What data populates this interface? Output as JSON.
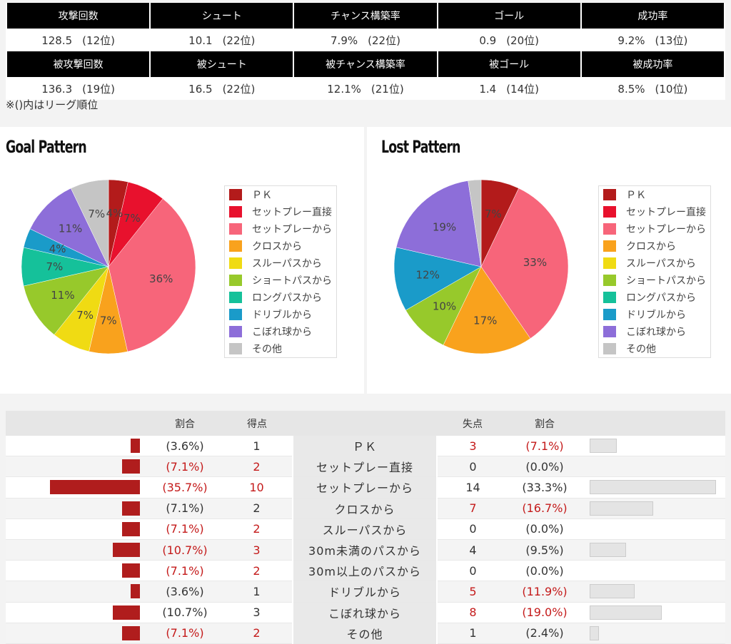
{
  "stats": {
    "row1": {
      "headers": [
        "攻撃回数",
        "シュート",
        "チャンス構築率",
        "ゴール",
        "成功率"
      ],
      "values": [
        [
          "128.5",
          "(12位)"
        ],
        [
          "10.1",
          "(22位)"
        ],
        [
          "7.9%",
          "(22位)"
        ],
        [
          "0.9",
          "(20位)"
        ],
        [
          "9.2%",
          "(13位)"
        ]
      ]
    },
    "row2": {
      "headers": [
        "被攻撃回数",
        "被シュート",
        "被チャンス構築率",
        "被ゴール",
        "被成功率"
      ],
      "values": [
        [
          "136.3",
          "(19位)"
        ],
        [
          "16.5",
          "(22位)"
        ],
        [
          "12.1%",
          "(21位)"
        ],
        [
          "1.4",
          "(14位)"
        ],
        [
          "8.5%",
          "(10位)"
        ]
      ]
    },
    "note": "※()内はリーグ順位"
  },
  "chart_data": [
    {
      "type": "pie",
      "title": "Goal Pattern",
      "categories": [
        "ＰＫ",
        "セットプレー直接",
        "セットプレーから",
        "クロスから",
        "スルーパスから",
        "ショートパスから",
        "ロングパスから",
        "ドリブルから",
        "こぼれ球から",
        "その他"
      ],
      "values": [
        3.6,
        7.1,
        35.7,
        7.1,
        7.1,
        10.7,
        7.1,
        3.6,
        10.7,
        7.1
      ],
      "labels": [
        "4%",
        "7%",
        "36%",
        "7%",
        "7%",
        "11%",
        "7%",
        "4%",
        "11%",
        "7%"
      ],
      "colors": [
        "#b31b1b",
        "#e8112d",
        "#f7657a",
        "#f9a21d",
        "#f0db13",
        "#97c92b",
        "#15c19a",
        "#1a9bc9",
        "#8d6ed9",
        "#c5c5c5"
      ]
    },
    {
      "type": "pie",
      "title": "Lost Pattern",
      "categories": [
        "ＰＫ",
        "セットプレー直接",
        "セットプレーから",
        "クロスから",
        "スルーパスから",
        "ショートパスから",
        "ロングパスから",
        "ドリブルから",
        "こぼれ球から",
        "その他"
      ],
      "values": [
        7.1,
        0,
        33.3,
        16.7,
        0,
        9.5,
        0,
        11.9,
        19.0,
        2.4
      ],
      "labels": [
        "7%",
        "",
        "33%",
        "17%",
        "",
        "10%",
        "",
        "12%",
        "19%",
        ""
      ],
      "colors": [
        "#b31b1b",
        "#e8112d",
        "#f7657a",
        "#f9a21d",
        "#f0db13",
        "#97c92b",
        "#15c19a",
        "#1a9bc9",
        "#8d6ed9",
        "#c5c5c5"
      ]
    }
  ],
  "compare": {
    "headers": [
      "",
      "割合",
      "得点",
      "",
      "失点",
      "割合",
      ""
    ],
    "rows": [
      {
        "label": "ＰＫ",
        "gf": "1",
        "gf_pct": "(3.6%)",
        "gf_v": 3.6,
        "gf_red": false,
        "ga": "3",
        "ga_pct": "(7.1%)",
        "ga_v": 7.1,
        "ga_red": true
      },
      {
        "label": "セットプレー直接",
        "gf": "2",
        "gf_pct": "(7.1%)",
        "gf_v": 7.1,
        "gf_red": true,
        "ga": "0",
        "ga_pct": "(0.0%)",
        "ga_v": 0,
        "ga_red": false
      },
      {
        "label": "セットプレーから",
        "gf": "10",
        "gf_pct": "(35.7%)",
        "gf_v": 35.7,
        "gf_red": true,
        "ga": "14",
        "ga_pct": "(33.3%)",
        "ga_v": 33.3,
        "ga_red": false
      },
      {
        "label": "クロスから",
        "gf": "2",
        "gf_pct": "(7.1%)",
        "gf_v": 7.1,
        "gf_red": false,
        "ga": "7",
        "ga_pct": "(16.7%)",
        "ga_v": 16.7,
        "ga_red": true
      },
      {
        "label": "スルーパスから",
        "gf": "2",
        "gf_pct": "(7.1%)",
        "gf_v": 7.1,
        "gf_red": true,
        "ga": "0",
        "ga_pct": "(0.0%)",
        "ga_v": 0,
        "ga_red": false
      },
      {
        "label": "30m未満のパスから",
        "gf": "3",
        "gf_pct": "(10.7%)",
        "gf_v": 10.7,
        "gf_red": true,
        "ga": "4",
        "ga_pct": "(9.5%)",
        "ga_v": 9.5,
        "ga_red": false
      },
      {
        "label": "30m以上のパスから",
        "gf": "2",
        "gf_pct": "(7.1%)",
        "gf_v": 7.1,
        "gf_red": true,
        "ga": "0",
        "ga_pct": "(0.0%)",
        "ga_v": 0,
        "ga_red": false
      },
      {
        "label": "ドリブルから",
        "gf": "1",
        "gf_pct": "(3.6%)",
        "gf_v": 3.6,
        "gf_red": false,
        "ga": "5",
        "ga_pct": "(11.9%)",
        "ga_v": 11.9,
        "ga_red": true
      },
      {
        "label": "こぼれ球から",
        "gf": "3",
        "gf_pct": "(10.7%)",
        "gf_v": 10.7,
        "gf_red": false,
        "ga": "8",
        "ga_pct": "(19.0%)",
        "ga_v": 19.0,
        "ga_red": true
      },
      {
        "label": "その他",
        "gf": "2",
        "gf_pct": "(7.1%)",
        "gf_v": 7.1,
        "gf_red": true,
        "ga": "1",
        "ga_pct": "(2.4%)",
        "ga_v": 2.4,
        "ga_red": false
      }
    ]
  }
}
